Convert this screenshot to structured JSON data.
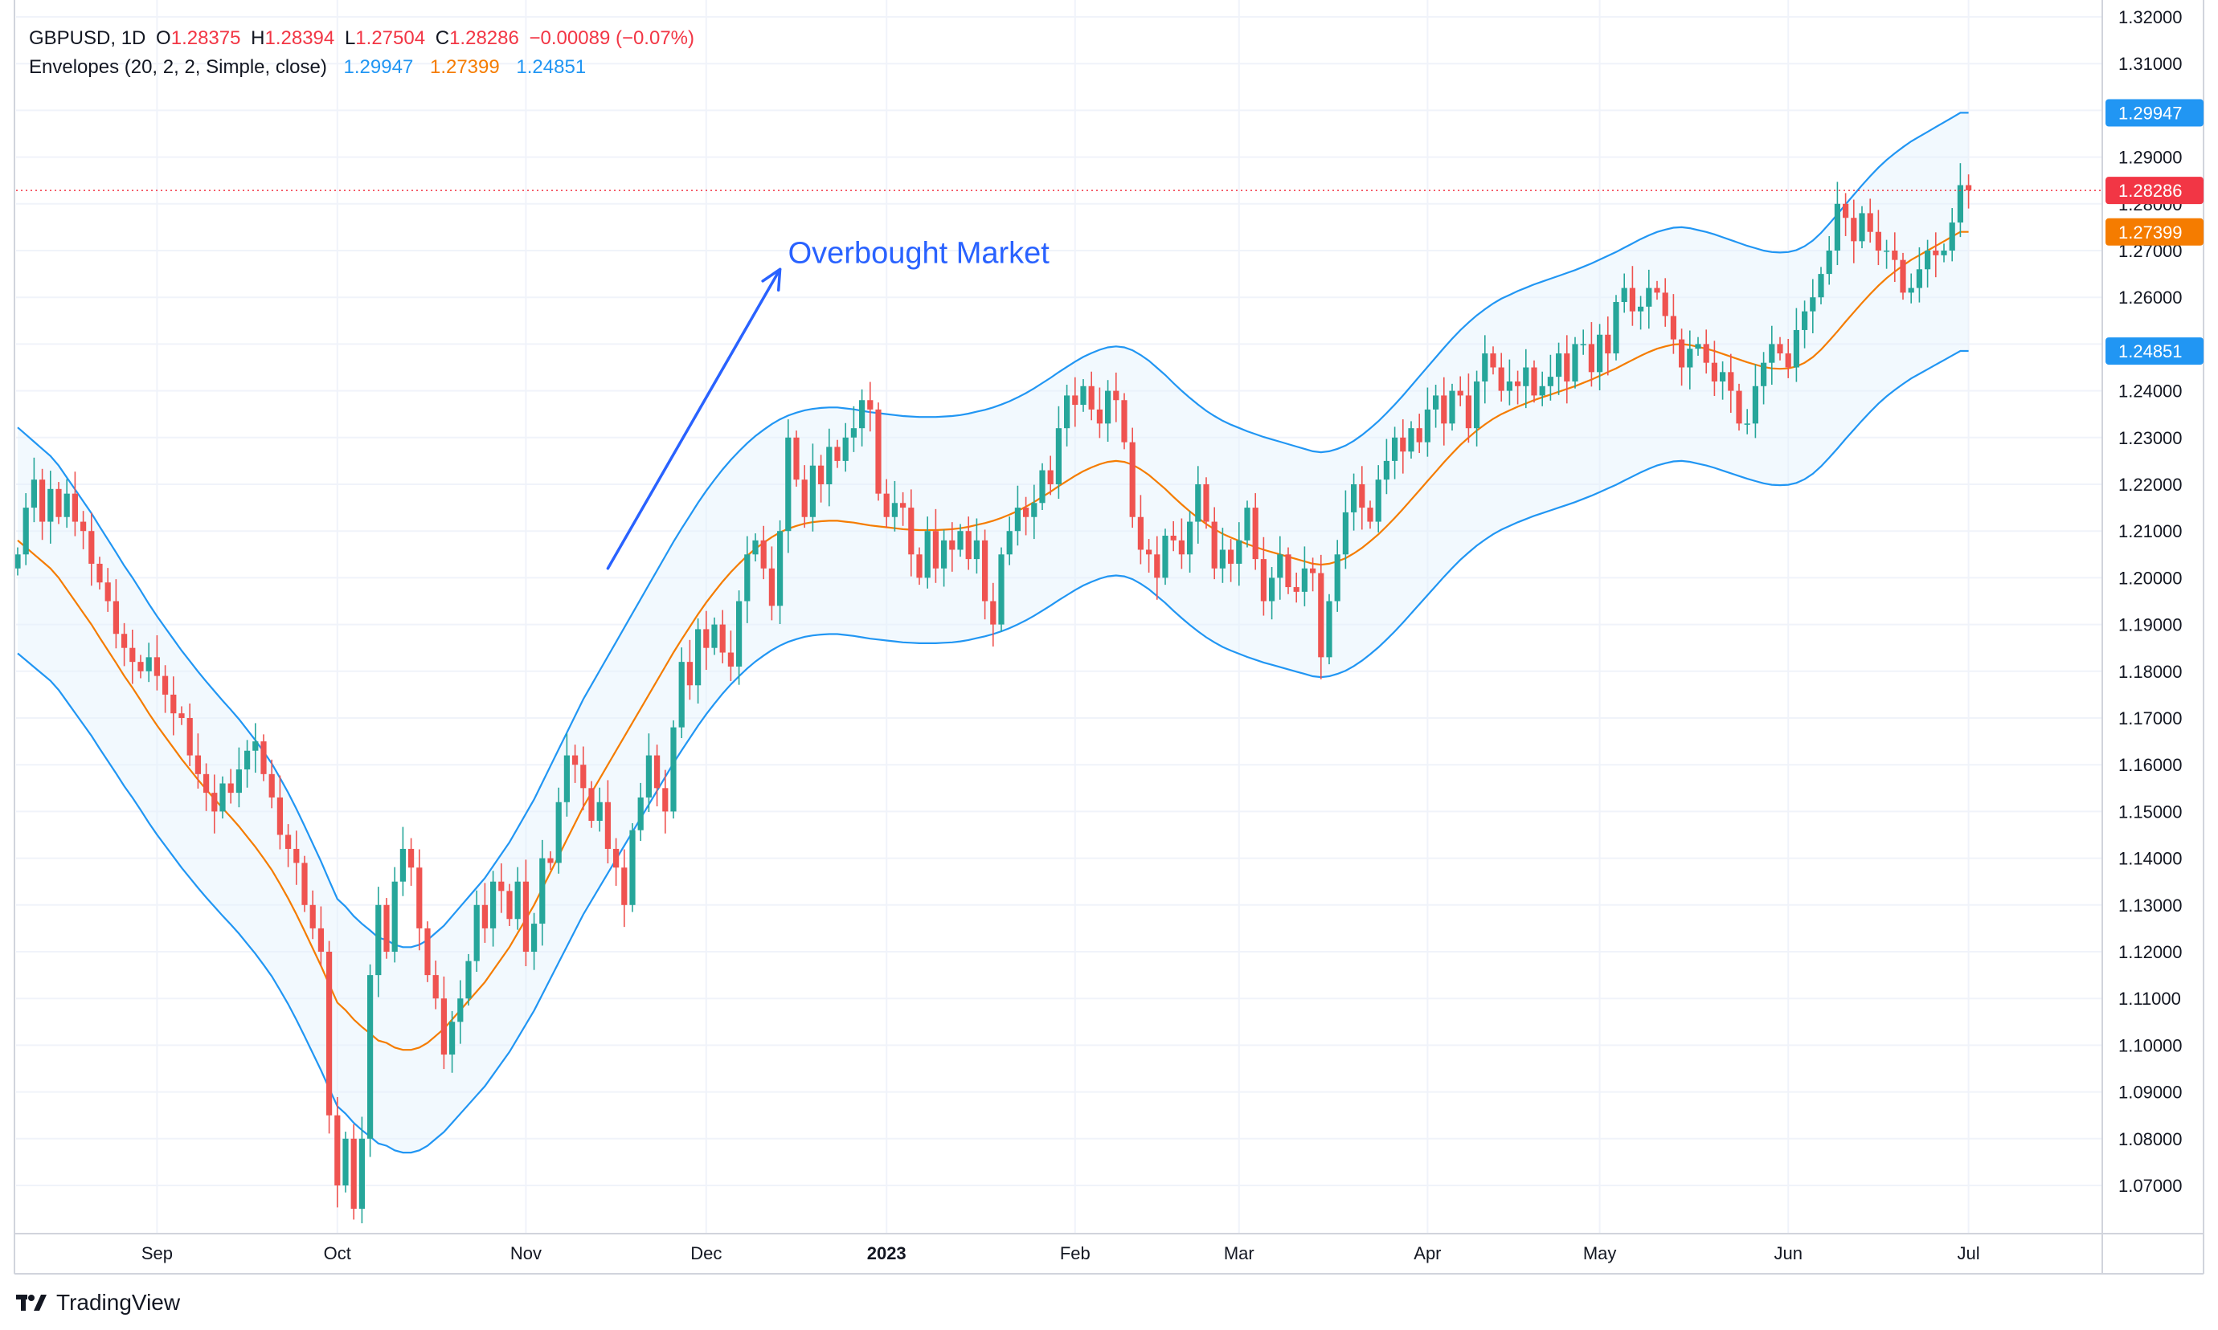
{
  "header": {
    "symbol": "GBPUSD, 1D",
    "o_label": "O",
    "o_value": "1.28375",
    "h_label": "H",
    "h_value": "1.28394",
    "l_label": "L",
    "l_value": "1.27504",
    "c_label": "C",
    "c_value": "1.28286",
    "change": "−0.00089 (−0.07%)"
  },
  "indicator": {
    "name": "Envelopes (20, 2, 2, Simple, close)",
    "upper": "1.29947",
    "basis": "1.27399",
    "lower": "1.24851"
  },
  "annotation": {
    "text": "Overbought Market"
  },
  "brand": {
    "name": "TradingView"
  },
  "colors": {
    "up": "#26a69a",
    "down": "#ef5350",
    "envelope": "#2196f3",
    "basis": "#f57c00",
    "fill": "#e3f2fd",
    "last_price": "#f23645",
    "arrow": "#2962ff"
  },
  "chart_data": {
    "type": "candlestick",
    "title": "GBPUSD, 1D",
    "ylim": [
      1.06,
      1.32
    ],
    "y_ticks": [
      "1.07000",
      "1.08000",
      "1.09000",
      "1.10000",
      "1.11000",
      "1.12000",
      "1.13000",
      "1.14000",
      "1.15000",
      "1.16000",
      "1.17000",
      "1.18000",
      "1.19000",
      "1.20000",
      "1.21000",
      "1.22000",
      "1.23000",
      "1.24000",
      "1.25000",
      "1.26000",
      "1.27000",
      "1.28000",
      "1.29000",
      "1.30000",
      "1.31000",
      "1.32000"
    ],
    "x_ticks": [
      {
        "label": "Sep",
        "bold": false,
        "day": 17
      },
      {
        "label": "Oct",
        "bold": false,
        "day": 39
      },
      {
        "label": "Nov",
        "bold": false,
        "day": 62
      },
      {
        "label": "Dec",
        "bold": false,
        "day": 84
      },
      {
        "label": "2023",
        "bold": true,
        "day": 106
      },
      {
        "label": "Feb",
        "bold": false,
        "day": 129
      },
      {
        "label": "Mar",
        "bold": false,
        "day": 149
      },
      {
        "label": "Apr",
        "bold": false,
        "day": 172
      },
      {
        "label": "May",
        "bold": false,
        "day": 193
      },
      {
        "label": "Jun",
        "bold": false,
        "day": 216
      },
      {
        "label": "Jul",
        "bold": false,
        "day": 238
      }
    ],
    "price_labels": [
      {
        "value": 1.29947,
        "text": "1.29947",
        "color": "#2196f3"
      },
      {
        "value": 1.28286,
        "text": "1.28286",
        "color": "#f23645"
      },
      {
        "value": 1.27399,
        "text": "1.27399",
        "color": "#f57c00"
      },
      {
        "value": 1.24851,
        "text": "1.24851",
        "color": "#2196f3"
      }
    ],
    "last_price": 1.28286,
    "closes": [
      1.205,
      1.215,
      1.221,
      1.212,
      1.219,
      1.213,
      1.218,
      1.212,
      1.21,
      1.203,
      1.199,
      1.195,
      1.188,
      1.185,
      1.182,
      1.18,
      1.183,
      1.179,
      1.175,
      1.171,
      1.17,
      1.162,
      1.158,
      1.154,
      1.15,
      1.156,
      1.154,
      1.159,
      1.163,
      1.165,
      1.158,
      1.153,
      1.145,
      1.142,
      1.139,
      1.13,
      1.125,
      1.12,
      1.085,
      1.07,
      1.08,
      1.065,
      1.08,
      1.115,
      1.13,
      1.12,
      1.135,
      1.142,
      1.138,
      1.125,
      1.115,
      1.11,
      1.098,
      1.105,
      1.11,
      1.118,
      1.13,
      1.125,
      1.135,
      1.133,
      1.127,
      1.135,
      1.12,
      1.126,
      1.14,
      1.139,
      1.152,
      1.162,
      1.16,
      1.155,
      1.148,
      1.152,
      1.142,
      1.138,
      1.13,
      1.146,
      1.153,
      1.162,
      1.155,
      1.15,
      1.168,
      1.182,
      1.177,
      1.189,
      1.185,
      1.19,
      1.184,
      1.181,
      1.195,
      1.205,
      1.208,
      1.202,
      1.194,
      1.21,
      1.23,
      1.221,
      1.213,
      1.224,
      1.22,
      1.228,
      1.225,
      1.23,
      1.232,
      1.238,
      1.236,
      1.218,
      1.213,
      1.216,
      1.215,
      1.205,
      1.2,
      1.21,
      1.202,
      1.208,
      1.206,
      1.21,
      1.204,
      1.208,
      1.195,
      1.19,
      1.205,
      1.21,
      1.215,
      1.213,
      1.216,
      1.223,
      1.22,
      1.232,
      1.239,
      1.237,
      1.241,
      1.236,
      1.233,
      1.24,
      1.238,
      1.229,
      1.213,
      1.206,
      1.205,
      1.2,
      1.209,
      1.208,
      1.205,
      1.212,
      1.22,
      1.212,
      1.202,
      1.206,
      1.203,
      1.208,
      1.215,
      1.204,
      1.195,
      1.2,
      1.205,
      1.198,
      1.197,
      1.202,
      1.201,
      1.183,
      1.195,
      1.205,
      1.214,
      1.22,
      1.215,
      1.212,
      1.221,
      1.225,
      1.23,
      1.227,
      1.232,
      1.229,
      1.236,
      1.239,
      1.233,
      1.24,
      1.239,
      1.232,
      1.242,
      1.248,
      1.245,
      1.24,
      1.242,
      1.241,
      1.245,
      1.239,
      1.241,
      1.243,
      1.248,
      1.242,
      1.25,
      1.25,
      1.244,
      1.252,
      1.248,
      1.259,
      1.262,
      1.257,
      1.258,
      1.262,
      1.261,
      1.256,
      1.251,
      1.245,
      1.249,
      1.25,
      1.246,
      1.242,
      1.244,
      1.24,
      1.233,
      1.233,
      1.241,
      1.246,
      1.25,
      1.248,
      1.245,
      1.253,
      1.257,
      1.26,
      1.265,
      1.27,
      1.28,
      1.277,
      1.272,
      1.278,
      1.274,
      1.27,
      1.27,
      1.268,
      1.261,
      1.262,
      1.266,
      1.27,
      1.269,
      1.27,
      1.276,
      1.284,
      1.2829
    ],
    "basis": [
      1.208,
      1.2065,
      1.205,
      1.2035,
      1.202,
      1.2,
      1.1975,
      1.195,
      1.1925,
      1.19,
      1.1872,
      1.1845,
      1.1818,
      1.179,
      1.1765,
      1.1738,
      1.171,
      1.1684,
      1.166,
      1.1636,
      1.1612,
      1.159,
      1.1568,
      1.1547,
      1.1527,
      1.1507,
      1.1488,
      1.1468,
      1.1446,
      1.1424,
      1.14,
      1.1375,
      1.1345,
      1.1314,
      1.128,
      1.1244,
      1.1207,
      1.117,
      1.113,
      1.1091,
      1.1075,
      1.1055,
      1.1039,
      1.1025,
      1.101,
      1.1005,
      1.0995,
      1.099,
      1.099,
      1.0995,
      1.1005,
      1.102,
      1.1035,
      1.1055,
      1.1075,
      1.1095,
      1.1115,
      1.1135,
      1.116,
      1.1185,
      1.121,
      1.124,
      1.127,
      1.13,
      1.1335,
      1.137,
      1.1405,
      1.144,
      1.1475,
      1.151,
      1.154,
      1.157,
      1.16,
      1.163,
      1.166,
      1.169,
      1.172,
      1.175,
      1.178,
      1.181,
      1.184,
      1.1868,
      1.1895,
      1.1922,
      1.1947,
      1.197,
      1.1992,
      1.2012,
      1.203,
      1.2047,
      1.2062,
      1.2075,
      1.2087,
      1.2097,
      1.2105,
      1.2111,
      1.2116,
      1.2119,
      1.2121,
      1.2122,
      1.2122,
      1.212,
      1.2118,
      1.2115,
      1.2112,
      1.211,
      1.2108,
      1.2106,
      1.2104,
      1.2103,
      1.2102,
      1.2102,
      1.2102,
      1.2103,
      1.2104,
      1.2106,
      1.2109,
      1.2113,
      1.2117,
      1.2122,
      1.2128,
      1.2135,
      1.2143,
      1.2152,
      1.2162,
      1.2173,
      1.2184,
      1.2196,
      1.2207,
      1.2218,
      1.2228,
      1.2236,
      1.2243,
      1.2248,
      1.225,
      1.2248,
      1.2242,
      1.2232,
      1.222,
      1.2205,
      1.219,
      1.2173,
      1.2157,
      1.2142,
      1.2128,
      1.2115,
      1.2104,
      1.2094,
      1.2086,
      1.2079,
      1.2072,
      1.2066,
      1.206,
      1.2055,
      1.205,
      1.2045,
      1.204,
      1.2035,
      1.203,
      1.2028,
      1.203,
      1.2035,
      1.2042,
      1.2052,
      1.2064,
      1.2078,
      1.2093,
      1.211,
      1.2128,
      1.2147,
      1.2167,
      1.2187,
      1.2207,
      1.2227,
      1.2247,
      1.2266,
      1.2284,
      1.23,
      1.2315,
      1.2328,
      1.234,
      1.235,
      1.2358,
      1.2366,
      1.2373,
      1.238,
      1.2386,
      1.2392,
      1.2398,
      1.2404,
      1.241,
      1.2417,
      1.2424,
      1.2432,
      1.244,
      1.2448,
      1.2457,
      1.2466,
      1.2475,
      1.2483,
      1.249,
      1.2495,
      1.2499,
      1.25,
      1.2498,
      1.2494,
      1.249,
      1.2485,
      1.2479,
      1.2473,
      1.2467,
      1.2461,
      1.2456,
      1.2451,
      1.2448,
      1.2447,
      1.2448,
      1.2452,
      1.246,
      1.2472,
      1.2488,
      1.2507,
      1.2527,
      1.2548,
      1.2568,
      1.2588,
      1.2607,
      1.2625,
      1.2641,
      1.2655,
      1.2668,
      1.268,
      1.269,
      1.27,
      1.271,
      1.272,
      1.273,
      1.274,
      1.274
    ],
    "envelope_pct": 2,
    "annotation_arrow": {
      "from": [
        72,
        1.202
      ],
      "to": [
        93,
        1.266
      ]
    }
  }
}
